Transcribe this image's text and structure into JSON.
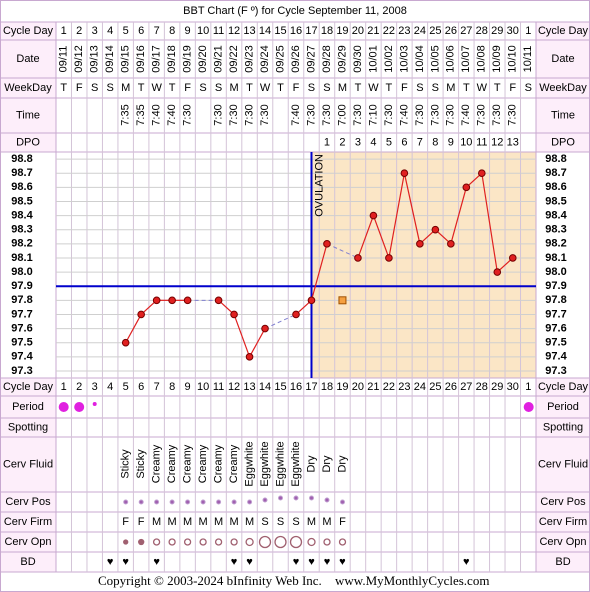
{
  "title": "BBT Chart (F º) for Cycle September 11, 2008",
  "row_labels": {
    "cycle_day": "Cycle Day",
    "date": "Date",
    "weekday": "WeekDay",
    "time": "Time",
    "dpo": "DPO",
    "period": "Period",
    "spotting": "Spotting",
    "cerv_fluid": "Cerv Fluid",
    "cerv_pos": "Cerv Pos",
    "cerv_firm": "Cerv Firm",
    "cerv_opn": "Cerv Opn",
    "bd": "BD"
  },
  "footer": {
    "copyright": "Copyright © 2003-2024 bInfinity Web Inc.",
    "site": "www.MyMonthlyCycles.com"
  },
  "chart_data": {
    "type": "line",
    "categories": [
      1,
      2,
      3,
      4,
      5,
      6,
      7,
      8,
      9,
      10,
      11,
      12,
      13,
      14,
      15,
      16,
      17,
      18,
      19,
      20,
      21,
      22,
      23,
      24,
      25,
      26,
      27,
      28,
      29,
      30,
      1
    ],
    "dates": [
      "09/11",
      "09/12",
      "09/13",
      "09/14",
      "09/15",
      "09/16",
      "09/17",
      "09/18",
      "09/19",
      "09/20",
      "09/21",
      "09/22",
      "09/23",
      "09/24",
      "09/25",
      "09/26",
      "09/27",
      "09/28",
      "09/29",
      "09/30",
      "10/01",
      "10/02",
      "10/03",
      "10/04",
      "10/05",
      "10/06",
      "10/07",
      "10/08",
      "10/09",
      "10/10",
      "10/11"
    ],
    "weekdays": [
      "T",
      "F",
      "S",
      "S",
      "M",
      "T",
      "W",
      "T",
      "F",
      "S",
      "S",
      "M",
      "T",
      "W",
      "T",
      "F",
      "S",
      "S",
      "M",
      "T",
      "W",
      "T",
      "F",
      "S",
      "S",
      "M",
      "T",
      "W",
      "T",
      "F",
      "S"
    ],
    "times": [
      null,
      null,
      null,
      null,
      "7:35",
      "7:35",
      "7:40",
      "7:40",
      "7:30",
      null,
      "7:30",
      "7:30",
      "7:30",
      "7:30",
      null,
      "7:40",
      "7:30",
      "7:30",
      "7:00",
      "7:30",
      "7:10",
      "7:30",
      "7:40",
      "7:30",
      "7:30",
      "7:30",
      "7:40",
      "7:30",
      "7:30",
      "7:30",
      null
    ],
    "dpo": [
      null,
      null,
      null,
      null,
      null,
      null,
      null,
      null,
      null,
      null,
      null,
      null,
      null,
      null,
      null,
      null,
      null,
      1,
      2,
      3,
      4,
      5,
      6,
      7,
      8,
      9,
      10,
      11,
      12,
      13,
      null
    ],
    "series": [
      {
        "color": "#e02020",
        "values": [
          null,
          null,
          null,
          null,
          97.5,
          97.7,
          97.8,
          97.8,
          97.8,
          null,
          97.8,
          97.7,
          97.4,
          97.6,
          null,
          97.7,
          97.8,
          98.2,
          null,
          98.1,
          98.4,
          98.1,
          98.7,
          98.2,
          98.3,
          98.2,
          98.6,
          98.7,
          98.0,
          98.1,
          null
        ]
      },
      {
        "color": "#f5a040",
        "marker": "square",
        "values": [
          null,
          null,
          null,
          null,
          null,
          null,
          null,
          null,
          null,
          null,
          null,
          null,
          null,
          null,
          null,
          null,
          null,
          null,
          97.8,
          null,
          null,
          null,
          null,
          null,
          null,
          null,
          null,
          null,
          null,
          null,
          null
        ]
      }
    ],
    "ylim": [
      97.25,
      98.85
    ],
    "yticks": [
      97.3,
      97.4,
      97.5,
      97.6,
      97.7,
      97.8,
      97.9,
      {
        "value": 98,
        "label": "98.0"
      },
      98.1,
      98.2,
      98.3,
      98.4,
      98.5,
      98.6,
      98.7,
      98.8
    ],
    "grid": true,
    "coverline": 97.9,
    "coverline_color": "#0000cc",
    "ovulation_day": 17,
    "ovulation_label": "OVULATION",
    "luteal_color": "#fbe6c6",
    "cerv_fluid": [
      null,
      null,
      null,
      null,
      "Sticky",
      "Sticky",
      "Creamy",
      "Creamy",
      "Creamy",
      "Creamy",
      "Creamy",
      "Creamy",
      "Eggwhite",
      "Eggwhite",
      "Eggwhite",
      "Eggwhite",
      "Dry",
      "Dry",
      "Dry",
      null,
      null,
      null,
      null,
      null,
      null,
      null,
      null,
      null,
      null,
      null,
      null
    ],
    "cerv_firm": [
      null,
      null,
      null,
      null,
      "F",
      "F",
      "M",
      "M",
      "M",
      "M",
      "M",
      "M",
      "M",
      "S",
      "S",
      "S",
      "M",
      "M",
      "F",
      null,
      null,
      null,
      null,
      null,
      null,
      null,
      null,
      null,
      null,
      null,
      null
    ],
    "bd": [
      null,
      null,
      null,
      "♥",
      "♥",
      null,
      "♥",
      null,
      null,
      null,
      null,
      "♥",
      "♥",
      null,
      null,
      "♥",
      "♥",
      "♥",
      "♥",
      null,
      null,
      null,
      null,
      null,
      null,
      null,
      "♥",
      null,
      null,
      null,
      null
    ]
  }
}
